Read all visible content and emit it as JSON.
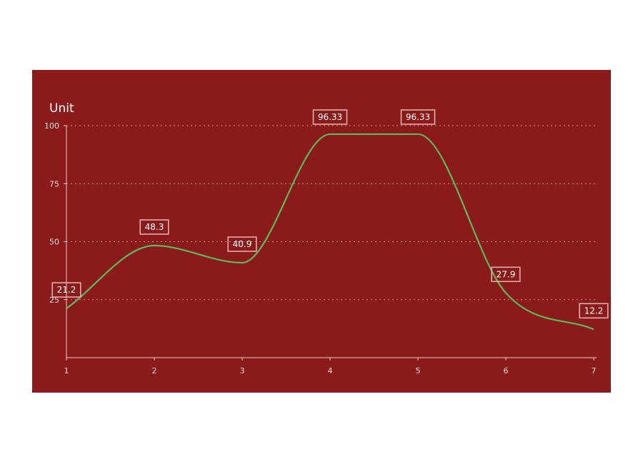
{
  "colors": {
    "background": "#8b1a1a",
    "line": "#5fb85a",
    "axis": "#e9c9c9",
    "grid": "#c98a8a",
    "label_border": "#e6b8b8",
    "text": "#ffffff"
  },
  "chart_data": {
    "type": "line",
    "title": "",
    "xlabel": "",
    "ylabel": "Unit",
    "x": [
      "1",
      "2",
      "3",
      "4",
      "5",
      "6",
      "7"
    ],
    "series": [
      {
        "values": [
          21.2,
          48.3,
          40.9,
          96.33,
          96.33,
          27.9,
          12.2
        ]
      }
    ],
    "data_labels": [
      "21.2",
      "48.3",
      "40.9",
      "96.33",
      "96.33",
      "27.9",
      "12.2"
    ],
    "y_ticks": [
      "100",
      "75",
      "50",
      "25"
    ],
    "ylim": [
      0,
      100
    ],
    "grid": true,
    "curve": "smooth",
    "legend": "none"
  }
}
